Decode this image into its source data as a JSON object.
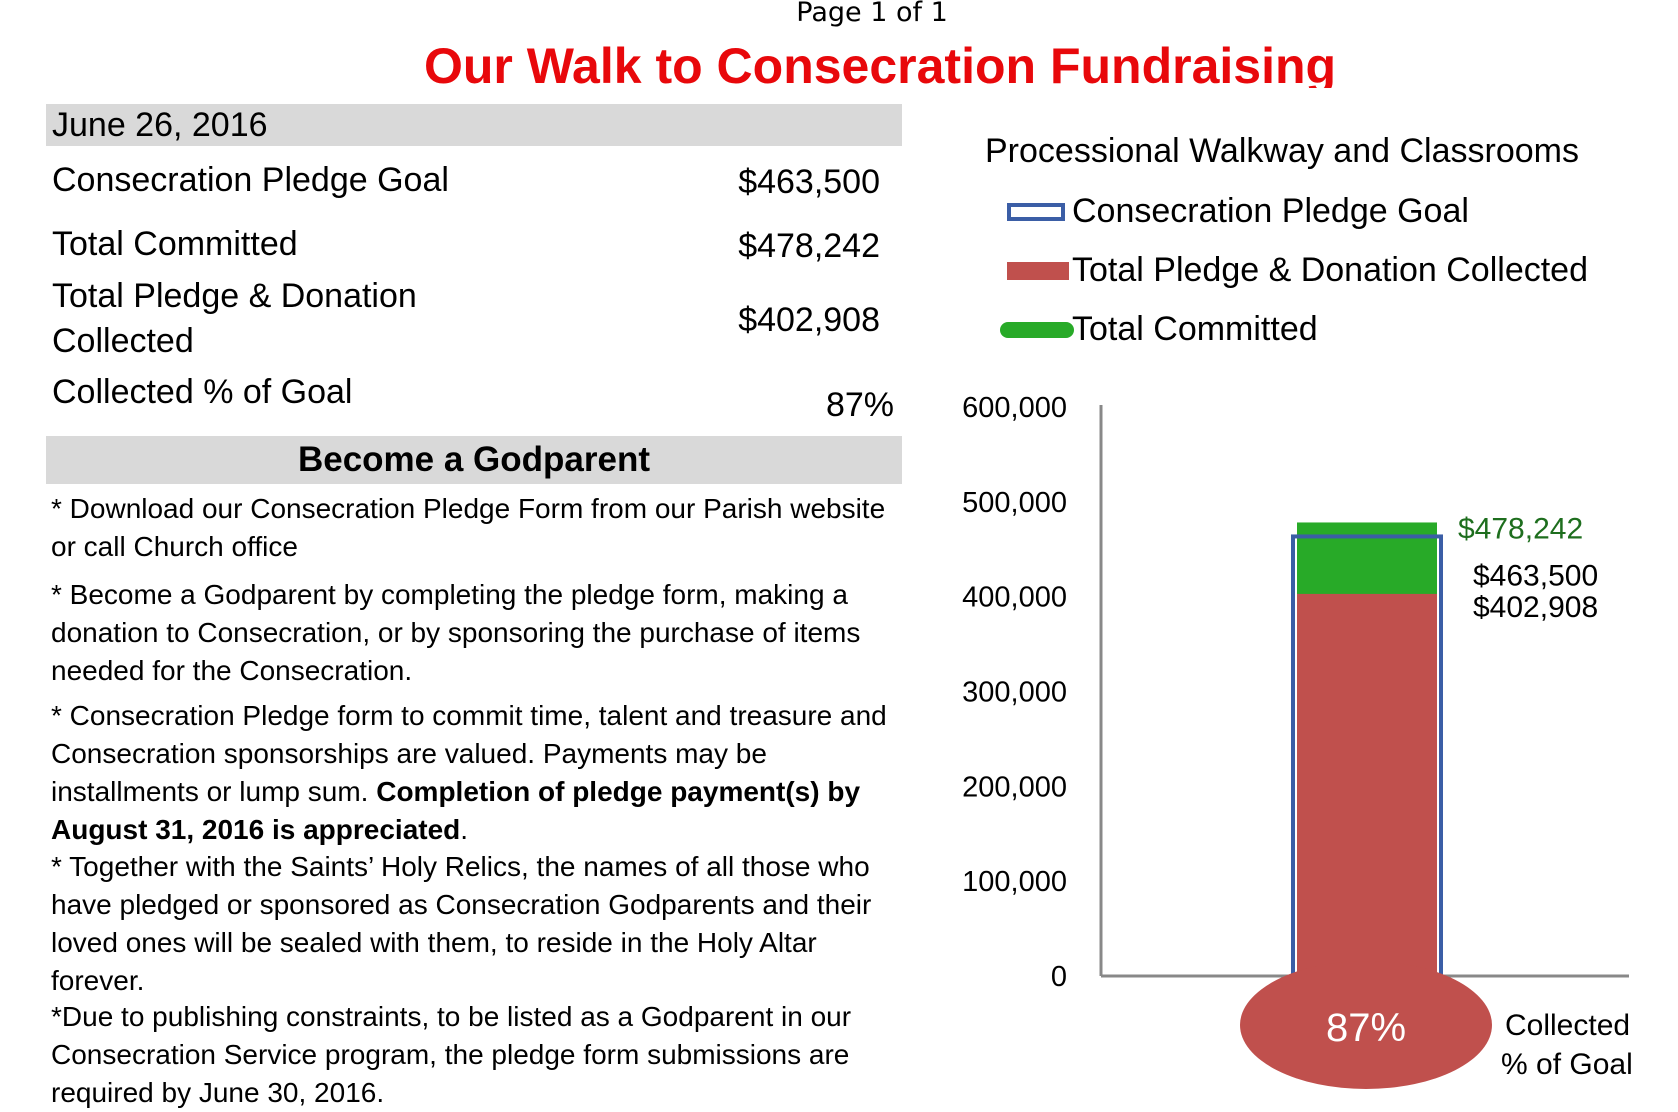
{
  "page": {
    "label": "Page 1 of 1"
  },
  "title": "Our Walk to Consecration Fundraising",
  "date": "June 26, 2016",
  "stats": [
    {
      "label": "Consecration Pledge Goal",
      "value": "$463,500"
    },
    {
      "label": "Total Committed",
      "value": "$478,242"
    },
    {
      "label_line1": "Total Pledge & Donation",
      "label_line2": "Collected",
      "value": "$402,908"
    },
    {
      "label": "Collected % of Goal",
      "value": "87%"
    }
  ],
  "godparent": {
    "heading": "Become a Godparent",
    "p1": "* Download our Consecration Pledge Form from our Parish website or call Church office",
    "p2": "* Become a Godparent by completing the pledge form, making a donation to Consecration, or by sponsoring the purchase of items needed for the Consecration.",
    "p3_a": "* Consecration Pledge form to commit time, talent and treasure and Consecration sponsorships are valued. Payments may be installments or lump sum. ",
    "p3_b": "Completion of pledge payment(s) by August 31, 2016 is appreciated",
    "p3_c": ".",
    "p4": "*  Together with the Saints’ Holy Relics, the names of all those who have pledged or sponsored as Consecration Godparents and their loved ones will be sealed with them, to reside in the Holy Altar forever.",
    "p5": "*Due to publishing constraints, to be listed as a Godparent in our Consecration Service program, the pledge form submissions are required by June 30, 2016."
  },
  "chart_data": {
    "type": "bar",
    "title": "Processional Walkway and Classrooms",
    "legend": [
      "Consecration Pledge Goal",
      "Total Pledge & Donation Collected",
      "Total Committed"
    ],
    "ylim": [
      0,
      600000
    ],
    "yticks": [
      0,
      100000,
      200000,
      300000,
      400000,
      500000,
      600000
    ],
    "ytick_labels": [
      "0",
      "100,000",
      "200,000",
      "300,000",
      "400,000",
      "500,000",
      "600,000"
    ],
    "series": [
      {
        "name": "Consecration Pledge Goal",
        "value": 463500,
        "label": "$463,500",
        "color": "#3b5ea6"
      },
      {
        "name": "Total Pledge & Donation Collected",
        "value": 402908,
        "label": "$402,908",
        "color": "#c0504d"
      },
      {
        "name": "Total Committed",
        "value": 478242,
        "label": "$478,242",
        "color": "#28aa28",
        "label_color": "#1e6e1e"
      }
    ],
    "percent_label": "87%",
    "percent_caption_line1": "Collected",
    "percent_caption_line2": "% of Goal"
  }
}
